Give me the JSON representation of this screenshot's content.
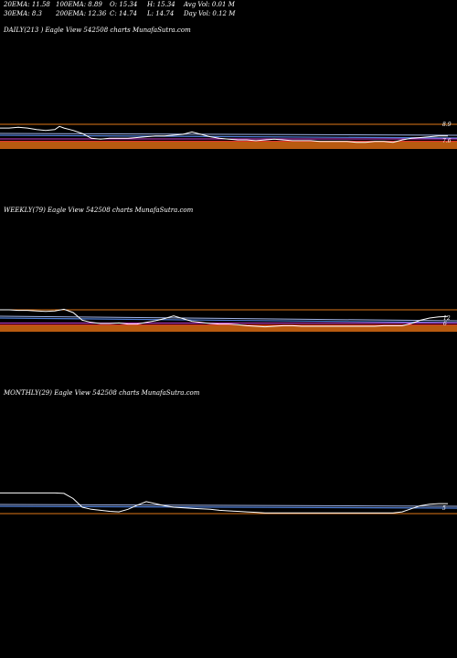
{
  "header": {
    "ema20": "20EMA: 11.58",
    "ema30": "30EMA: 8.3",
    "ema100": "100EMA: 8.89",
    "ema200": "200EMA: 12.36",
    "open": "O: 15.34",
    "close": "C: 14.74",
    "high": "H: 15.34",
    "low": "L: 14.74",
    "avg_vol": "Avg Vol: 0.01  M",
    "day_vol": "Day Vol: 0.12  M"
  },
  "panels": {
    "daily": {
      "title": "DAILY(213                                      ) Eagle   View  542508 charts MunafaSutra.com",
      "price_label_top": "8.9",
      "price_label_bottom": "7.6"
    },
    "weekly": {
      "title": "WEEKLY(79) Eagle   View  542508 charts MunafaSutra.com",
      "price_label_top": "12",
      "price_label_bottom": "6"
    },
    "monthly": {
      "title": "MONTHLY(29) Eagle   View  542508 charts MunafaSutra.com",
      "price_label_top": "",
      "price_label_bottom": "5"
    }
  },
  "colors": {
    "background": "#000000",
    "price": "#ffffff",
    "ema_blue": "#4f7fd8",
    "ema_light": "#a0b4e8",
    "ema_red": "#e03030",
    "ema_orange": "#e07818",
    "volume_band": "#b85a10",
    "magenta": "#d040d0"
  },
  "chart_data": [
    {
      "type": "line",
      "name": "DAILY",
      "x": [
        0,
        10,
        20,
        30,
        40,
        50,
        60,
        65,
        70,
        80,
        90,
        100,
        110,
        120,
        130,
        140,
        150,
        160,
        170,
        180,
        190,
        200,
        210,
        220,
        230,
        240,
        250,
        260,
        270,
        280,
        290,
        300,
        310,
        320,
        330,
        340,
        350,
        360,
        370,
        380,
        390,
        400,
        410,
        420,
        430,
        440,
        450,
        460,
        470,
        480,
        490
      ],
      "series": [
        {
          "values": [
            8.8,
            8.8,
            8.9,
            8.8,
            8.6,
            8.5,
            8.6,
            9.0,
            8.8,
            8.5,
            8.1,
            7.5,
            7.4,
            7.5,
            7.5,
            7.5,
            7.6,
            7.7,
            7.8,
            7.8,
            7.9,
            8.0,
            8.3,
            8.0,
            7.7,
            7.5,
            7.4,
            7.3,
            7.3,
            7.2,
            7.3,
            7.4,
            7.3,
            7.2,
            7.2,
            7.2,
            7.1,
            7.1,
            7.1,
            7.1,
            7.0,
            7.0,
            7.1,
            7.1,
            7.0,
            7.3,
            7.5,
            7.6,
            7.7,
            7.8,
            7.8
          ]
        }
      ]
    },
    {
      "type": "line",
      "name": "WEEKLY",
      "x": [
        0,
        10,
        20,
        30,
        40,
        50,
        60,
        70,
        80,
        90,
        100,
        110,
        120,
        130,
        140,
        150,
        160,
        170,
        180,
        190,
        200,
        210,
        220,
        230,
        240,
        250,
        260,
        270,
        280,
        290,
        300,
        310,
        320,
        330,
        340,
        350,
        360,
        370,
        380,
        390,
        400,
        410,
        420,
        430,
        440,
        450,
        460,
        470,
        480,
        490
      ],
      "series": [
        {
          "values": [
            10.5,
            10.5,
            10.4,
            10.4,
            10.3,
            10.2,
            10.3,
            10.6,
            10.0,
            8.6,
            8.2,
            8.0,
            8.0,
            8.1,
            7.9,
            7.9,
            8.2,
            8.5,
            8.9,
            9.4,
            8.9,
            8.4,
            8.2,
            8.0,
            7.9,
            7.9,
            7.8,
            7.6,
            7.5,
            7.4,
            7.5,
            7.6,
            7.6,
            7.5,
            7.5,
            7.5,
            7.5,
            7.5,
            7.5,
            7.5,
            7.5,
            7.5,
            7.6,
            7.6,
            7.6,
            8.0,
            8.6,
            9.0,
            9.2,
            9.3
          ]
        }
      ]
    },
    {
      "type": "line",
      "name": "MONTHLY",
      "x": [
        0,
        10,
        20,
        30,
        40,
        50,
        60,
        70,
        80,
        90,
        100,
        110,
        120,
        130,
        140,
        150,
        160,
        170,
        180,
        190,
        200,
        210,
        220,
        230,
        240,
        250,
        260,
        270,
        280,
        290,
        300,
        310,
        320,
        330,
        340,
        350,
        360,
        370,
        380,
        390,
        400,
        410,
        420,
        430,
        440,
        450,
        460,
        470,
        480,
        490
      ],
      "series": [
        {
          "values": [
            9.4,
            9.4,
            9.4,
            9.4,
            9.4,
            9.4,
            9.4,
            9.3,
            8.3,
            6.6,
            6.2,
            6.0,
            5.8,
            5.7,
            6.2,
            7.0,
            7.7,
            7.3,
            6.9,
            6.6,
            6.5,
            6.4,
            6.3,
            6.2,
            6.0,
            5.9,
            5.8,
            5.7,
            5.6,
            5.5,
            5.5,
            5.5,
            5.5,
            5.5,
            5.5,
            5.5,
            5.5,
            5.5,
            5.5,
            5.5,
            5.5,
            5.5,
            5.5,
            5.5,
            5.7,
            6.3,
            6.9,
            7.2,
            7.3,
            7.3
          ]
        }
      ]
    }
  ]
}
